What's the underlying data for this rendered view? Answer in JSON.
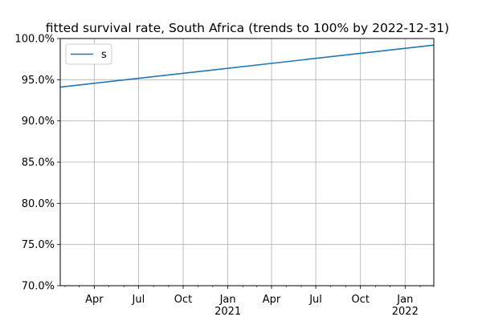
{
  "chart_data": {
    "type": "line",
    "title": "fitted survival rate, South Africa (trends to 100% by 2022-12-31)",
    "xlabel": "",
    "ylabel": "",
    "xlim": [
      "2020-01-22",
      "2022-03-01"
    ],
    "ylim": [
      70.0,
      100.0
    ],
    "grid": true,
    "legend_position": "upper-left",
    "y_ticks": [
      "70.0%",
      "75.0%",
      "80.0%",
      "85.0%",
      "90.0%",
      "95.0%",
      "100.0%"
    ],
    "x_ticks": [
      {
        "date": "2020-04-01",
        "label": "Apr",
        "sub": ""
      },
      {
        "date": "2020-07-01",
        "label": "Jul",
        "sub": ""
      },
      {
        "date": "2020-10-01",
        "label": "Oct",
        "sub": ""
      },
      {
        "date": "2021-01-01",
        "label": "Jan",
        "sub": "2021"
      },
      {
        "date": "2021-04-01",
        "label": "Apr",
        "sub": ""
      },
      {
        "date": "2021-07-01",
        "label": "Jul",
        "sub": ""
      },
      {
        "date": "2021-10-01",
        "label": "Oct",
        "sub": ""
      },
      {
        "date": "2022-01-01",
        "label": "Jan",
        "sub": "2022"
      }
    ],
    "series": [
      {
        "name": "s",
        "color": "#1f77b4",
        "x": [
          "2020-01-22",
          "2022-03-01"
        ],
        "y": [
          94.1,
          99.2
        ]
      }
    ]
  }
}
